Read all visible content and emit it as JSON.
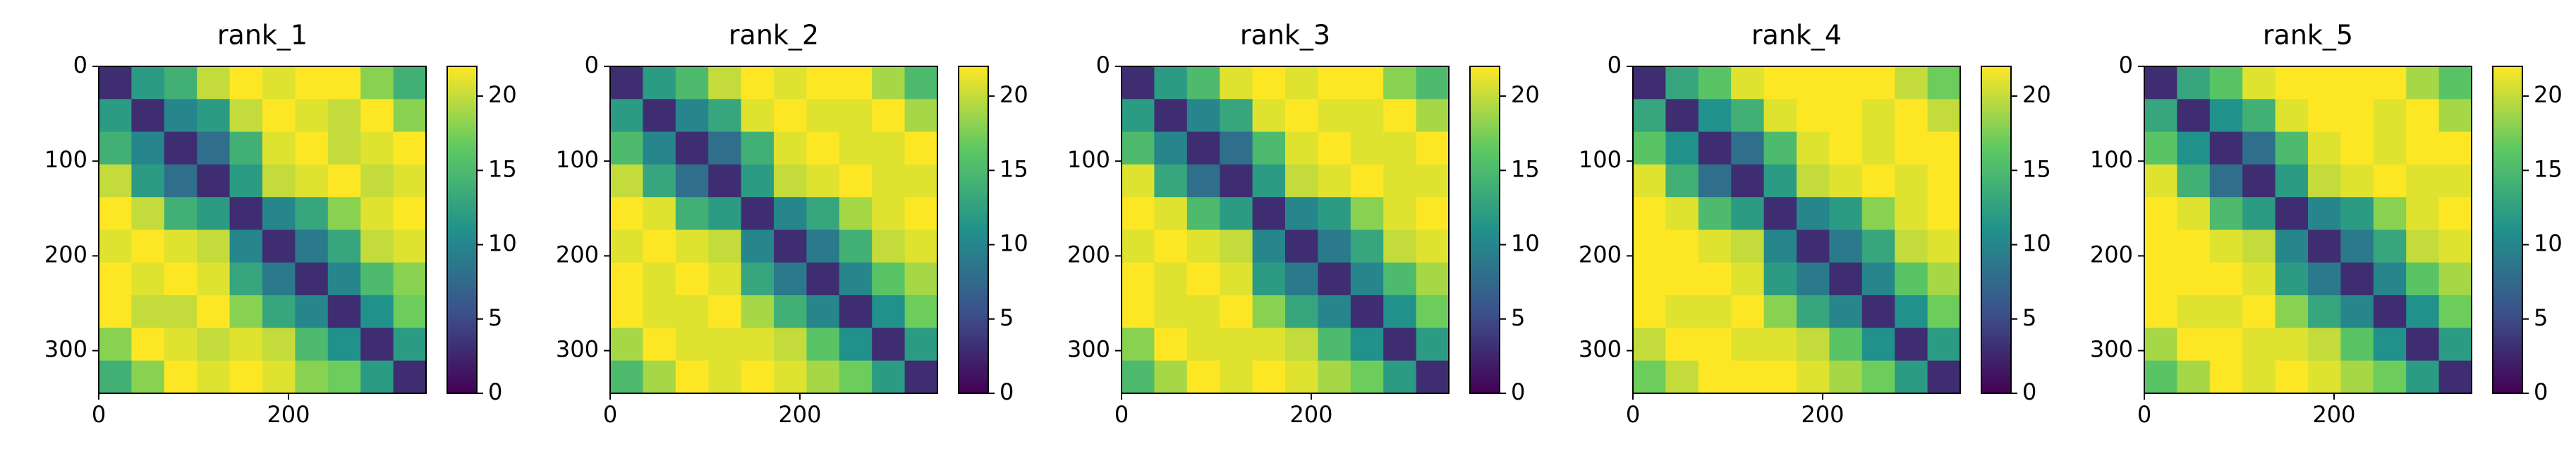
{
  "chart_data": [
    {
      "type": "heatmap",
      "title": "rank_1",
      "colormap": "viridis",
      "xlim": [
        0,
        345
      ],
      "ylim": [
        345,
        0
      ],
      "xticks": [
        0,
        200
      ],
      "yticks": [
        0,
        100,
        200,
        300
      ],
      "clim": [
        0,
        22
      ],
      "cticks": [
        0,
        5,
        10,
        15,
        20
      ],
      "z": [
        [
          3,
          12,
          14,
          20,
          22,
          21,
          22,
          22,
          18,
          14
        ],
        [
          12,
          3,
          10,
          12,
          20,
          22,
          21,
          20,
          22,
          18
        ],
        [
          14,
          10,
          3,
          8,
          14,
          21,
          22,
          20,
          21,
          22
        ],
        [
          20,
          12,
          8,
          3,
          12,
          20,
          21,
          22,
          20,
          21
        ],
        [
          22,
          20,
          14,
          12,
          3,
          10,
          13,
          18,
          21,
          22
        ],
        [
          21,
          22,
          21,
          20,
          10,
          3,
          9,
          13,
          20,
          21
        ],
        [
          22,
          21,
          22,
          21,
          13,
          9,
          3,
          10,
          15,
          18
        ],
        [
          22,
          20,
          20,
          22,
          18,
          13,
          10,
          3,
          11,
          17
        ],
        [
          18,
          22,
          21,
          20,
          21,
          20,
          15,
          11,
          3,
          12
        ],
        [
          14,
          18,
          22,
          21,
          22,
          21,
          18,
          17,
          12,
          3
        ]
      ]
    },
    {
      "type": "heatmap",
      "title": "rank_2",
      "colormap": "viridis",
      "xlim": [
        0,
        345
      ],
      "ylim": [
        345,
        0
      ],
      "xticks": [
        0,
        200
      ],
      "yticks": [
        0,
        100,
        200,
        300
      ],
      "clim": [
        0,
        22
      ],
      "cticks": [
        0,
        5,
        10,
        15,
        20
      ],
      "z": [
        [
          3,
          12,
          15,
          20,
          22,
          21,
          22,
          22,
          19,
          15
        ],
        [
          12,
          3,
          10,
          13,
          21,
          22,
          21,
          21,
          22,
          19
        ],
        [
          15,
          10,
          3,
          8,
          14,
          21,
          22,
          21,
          21,
          22
        ],
        [
          20,
          13,
          8,
          3,
          12,
          20,
          21,
          22,
          21,
          21
        ],
        [
          22,
          21,
          14,
          12,
          3,
          10,
          13,
          19,
          21,
          22
        ],
        [
          21,
          22,
          21,
          20,
          10,
          3,
          9,
          14,
          20,
          21
        ],
        [
          22,
          21,
          22,
          21,
          13,
          9,
          3,
          10,
          16,
          19
        ],
        [
          22,
          21,
          21,
          22,
          19,
          14,
          10,
          3,
          11,
          17
        ],
        [
          19,
          22,
          21,
          21,
          21,
          20,
          16,
          11,
          3,
          12
        ],
        [
          15,
          19,
          22,
          21,
          22,
          21,
          19,
          17,
          12,
          3
        ]
      ]
    },
    {
      "type": "heatmap",
      "title": "rank_3",
      "colormap": "viridis",
      "xlim": [
        0,
        345
      ],
      "ylim": [
        345,
        0
      ],
      "xticks": [
        0,
        200
      ],
      "yticks": [
        0,
        100,
        200,
        300
      ],
      "clim": [
        0,
        22
      ],
      "cticks": [
        0,
        5,
        10,
        15,
        20
      ],
      "z": [
        [
          3,
          12,
          15,
          21,
          22,
          21,
          22,
          22,
          18,
          15
        ],
        [
          12,
          3,
          10,
          13,
          21,
          22,
          21,
          21,
          22,
          19
        ],
        [
          15,
          10,
          3,
          8,
          15,
          21,
          22,
          21,
          21,
          22
        ],
        [
          21,
          13,
          8,
          3,
          12,
          20,
          21,
          22,
          21,
          21
        ],
        [
          22,
          21,
          15,
          12,
          3,
          10,
          12,
          18,
          21,
          22
        ],
        [
          21,
          22,
          21,
          20,
          10,
          3,
          9,
          13,
          20,
          21
        ],
        [
          22,
          21,
          22,
          21,
          12,
          9,
          3,
          10,
          15,
          19
        ],
        [
          22,
          21,
          21,
          22,
          18,
          13,
          10,
          3,
          11,
          17
        ],
        [
          18,
          22,
          21,
          21,
          21,
          20,
          15,
          11,
          3,
          12
        ],
        [
          15,
          19,
          22,
          21,
          22,
          21,
          19,
          17,
          12,
          3
        ]
      ]
    },
    {
      "type": "heatmap",
      "title": "rank_4",
      "colormap": "viridis",
      "xlim": [
        0,
        345
      ],
      "ylim": [
        345,
        0
      ],
      "xticks": [
        0,
        200
      ],
      "yticks": [
        0,
        100,
        200,
        300
      ],
      "clim": [
        0,
        22
      ],
      "cticks": [
        0,
        5,
        10,
        15,
        20
      ],
      "z": [
        [
          3,
          13,
          16,
          21,
          22,
          22,
          22,
          22,
          20,
          17
        ],
        [
          13,
          3,
          11,
          14,
          21,
          22,
          22,
          21,
          22,
          20
        ],
        [
          16,
          11,
          3,
          8,
          15,
          21,
          22,
          21,
          22,
          22
        ],
        [
          21,
          14,
          8,
          3,
          12,
          20,
          21,
          22,
          21,
          22
        ],
        [
          22,
          21,
          15,
          12,
          3,
          10,
          12,
          18,
          21,
          22
        ],
        [
          22,
          22,
          21,
          20,
          10,
          3,
          9,
          13,
          20,
          21
        ],
        [
          22,
          22,
          22,
          21,
          12,
          9,
          3,
          10,
          16,
          19
        ],
        [
          22,
          21,
          21,
          22,
          18,
          13,
          10,
          3,
          11,
          17
        ],
        [
          20,
          22,
          22,
          21,
          21,
          20,
          16,
          11,
          3,
          12
        ],
        [
          17,
          20,
          22,
          22,
          22,
          21,
          19,
          17,
          12,
          3
        ]
      ]
    },
    {
      "type": "heatmap",
      "title": "rank_5",
      "colormap": "viridis",
      "xlim": [
        0,
        345
      ],
      "ylim": [
        345,
        0
      ],
      "xticks": [
        0,
        200
      ],
      "yticks": [
        0,
        100,
        200,
        300
      ],
      "clim": [
        0,
        22
      ],
      "cticks": [
        0,
        5,
        10,
        15,
        20
      ],
      "z": [
        [
          3,
          13,
          16,
          21,
          22,
          22,
          22,
          22,
          19,
          16
        ],
        [
          13,
          3,
          11,
          14,
          21,
          22,
          22,
          21,
          22,
          19
        ],
        [
          16,
          11,
          3,
          8,
          15,
          21,
          22,
          21,
          22,
          22
        ],
        [
          21,
          14,
          8,
          3,
          12,
          20,
          21,
          22,
          21,
          21
        ],
        [
          22,
          21,
          15,
          12,
          3,
          10,
          12,
          18,
          21,
          22
        ],
        [
          22,
          22,
          21,
          20,
          10,
          3,
          9,
          13,
          20,
          21
        ],
        [
          22,
          22,
          22,
          21,
          12,
          9,
          3,
          10,
          16,
          19
        ],
        [
          22,
          21,
          21,
          22,
          18,
          13,
          10,
          3,
          11,
          17
        ],
        [
          19,
          22,
          22,
          21,
          21,
          20,
          16,
          11,
          3,
          12
        ],
        [
          16,
          19,
          22,
          21,
          22,
          21,
          19,
          17,
          12,
          3
        ]
      ]
    }
  ]
}
